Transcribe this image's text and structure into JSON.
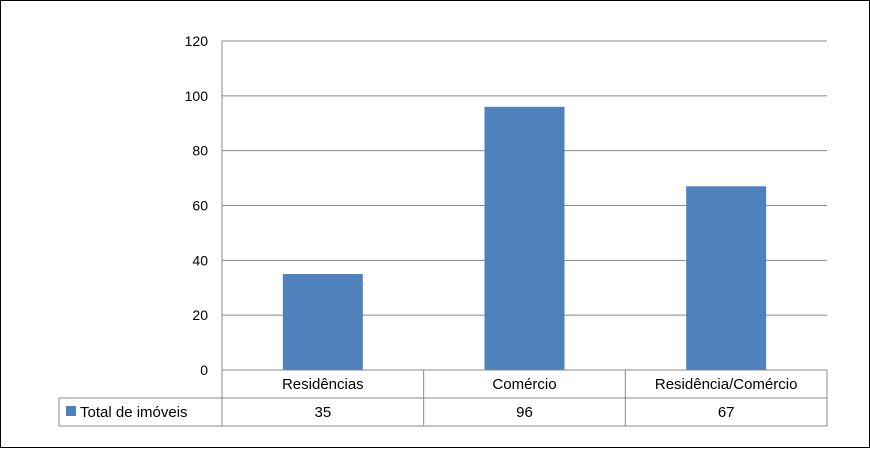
{
  "chart_data": {
    "type": "bar",
    "categories": [
      "Residências",
      "Comércio",
      "Residência/Comércio"
    ],
    "series": [
      {
        "name": "Total de imóveis",
        "values": [
          35,
          96,
          67
        ],
        "color": "#4F81BD"
      }
    ],
    "ylim": [
      0,
      120
    ],
    "yticks": [
      0,
      20,
      40,
      60,
      80,
      100,
      120
    ],
    "grid": true,
    "legend": "data-table",
    "data_table": true
  }
}
